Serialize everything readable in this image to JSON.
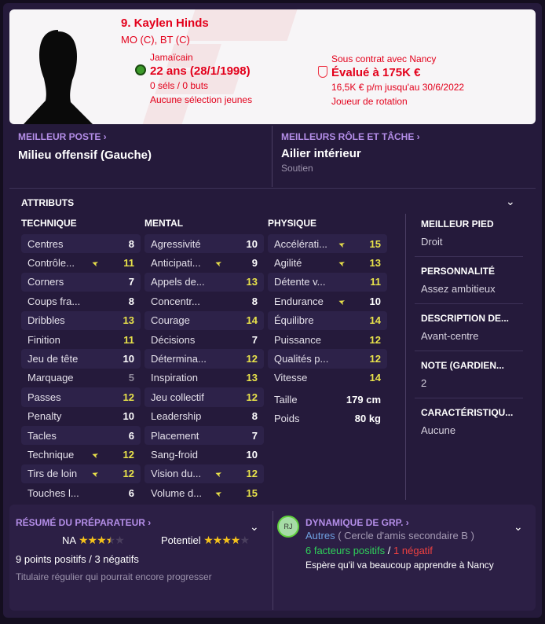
{
  "header": {
    "name": "9. Kaylen Hinds",
    "positions": "MO (C), BT (C)",
    "nationality": "Jamaïcain",
    "age": "22 ans (28/1/1998)",
    "caps": "0 séls / 0 buts",
    "youth_caps": "Aucune sélection jeunes",
    "contract": "Sous contrat avec Nancy",
    "value": "Évalué à 175K €",
    "wage": "16,5K € p/m jusqu'au 30/6/2022",
    "status": "Joueur de rotation",
    "accent": "#e3001b"
  },
  "best_position": {
    "title": "MEILLEUR POSTE",
    "value": "Milieu offensif (Gauche)"
  },
  "best_role": {
    "title": "MEILLEURS RÔLE ET TÂCHE",
    "value": "Ailier intérieur",
    "duty": "Soutien"
  },
  "attributes": {
    "title": "ATTRIBUTS",
    "technique": {
      "title": "TECHNIQUE",
      "rows": [
        [
          "Centres",
          8,
          0
        ],
        [
          "Contrôle...",
          11,
          1
        ],
        [
          "Corners",
          7,
          0
        ],
        [
          "Coups fra...",
          8,
          0
        ],
        [
          "Dribbles",
          13,
          0
        ],
        [
          "Finition",
          11,
          0
        ],
        [
          "Jeu de tête",
          10,
          0
        ],
        [
          "Marquage",
          5,
          0
        ],
        [
          "Passes",
          12,
          0
        ],
        [
          "Penalty",
          10,
          0
        ],
        [
          "Tacles",
          6,
          0
        ],
        [
          "Technique",
          12,
          1
        ],
        [
          "Tirs de loin",
          12,
          1
        ],
        [
          "Touches l...",
          6,
          0
        ]
      ]
    },
    "mental": {
      "title": "MENTAL",
      "rows": [
        [
          "Agressivité",
          10,
          0
        ],
        [
          "Anticipati...",
          9,
          1
        ],
        [
          "Appels de...",
          13,
          0
        ],
        [
          "Concentr...",
          8,
          0
        ],
        [
          "Courage",
          14,
          0
        ],
        [
          "Décisions",
          7,
          0
        ],
        [
          "Détermina...",
          12,
          0
        ],
        [
          "Inspiration",
          13,
          0
        ],
        [
          "Jeu collectif",
          12,
          0
        ],
        [
          "Leadership",
          8,
          0
        ],
        [
          "Placement",
          7,
          0
        ],
        [
          "Sang-froid",
          10,
          0
        ],
        [
          "Vision du...",
          12,
          1
        ],
        [
          "Volume d...",
          15,
          1
        ]
      ]
    },
    "physique": {
      "title": "PHYSIQUE",
      "rows": [
        [
          "Accélérati...",
          15,
          1
        ],
        [
          "Agilité",
          13,
          1
        ],
        [
          "Détente v...",
          11,
          0
        ],
        [
          "Endurance",
          10,
          1
        ],
        [
          "Équilibre",
          14,
          0
        ],
        [
          "Puissance",
          12,
          0
        ],
        [
          "Qualités p...",
          12,
          0
        ],
        [
          "Vitesse",
          14,
          0
        ]
      ]
    },
    "height_label": "Taille",
    "height": "179 cm",
    "weight_label": "Poids",
    "weight": "80 kg"
  },
  "side": [
    {
      "h": "MEILLEUR PIED",
      "t": "Droit"
    },
    {
      "h": "PERSONNALITÉ",
      "t": "Assez ambitieux"
    },
    {
      "h": "DESCRIPTION DE...",
      "t": "Avant-centre"
    },
    {
      "h": "NOTE (GARDIEN...",
      "t": "2"
    },
    {
      "h": "CARACTÉRISTIQU...",
      "t": "Aucune"
    }
  ],
  "coach": {
    "title": "RÉSUMÉ DU PRÉPARATEUR",
    "ca_label": "NA",
    "ca_stars": 3.5,
    "pa_label": "Potentiel",
    "pa_stars": 4,
    "points": "9 points positifs / 3 négatifs",
    "summary": "Titulaire régulier qui pourrait encore progresser"
  },
  "dynamics": {
    "title": "DYNAMIQUE DE GRP.",
    "avatar": "RJ",
    "group": "Autres",
    "circle": "( Cercle d'amis secondaire B )",
    "positive": "6 facteurs positifs",
    "sep": "/",
    "negative": "1 négatif",
    "note": "Espère qu'il va beaucoup apprendre à Nancy"
  }
}
